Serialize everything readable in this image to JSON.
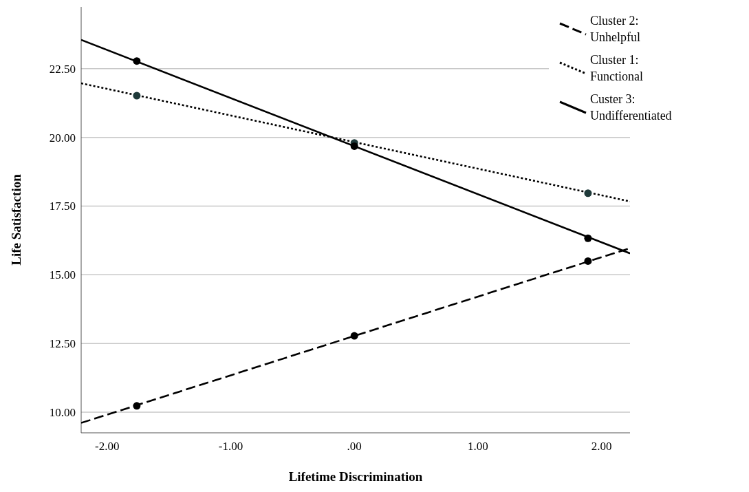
{
  "chart_data": {
    "type": "line",
    "xlabel": "Lifetime Discrimination",
    "ylabel": "Life Satisfaction",
    "xlim": [
      -2.21,
      2.23
    ],
    "ylim": [
      9.25,
      24.75
    ],
    "xticks": [
      {
        "value": -2,
        "label": "-2.00"
      },
      {
        "value": -1,
        "label": "-1.00"
      },
      {
        "value": 0,
        "label": ".00"
      },
      {
        "value": 1,
        "label": "1.00"
      },
      {
        "value": 2,
        "label": "2.00"
      }
    ],
    "yticks": [
      {
        "value": 10,
        "label": "10.00"
      },
      {
        "value": 12.5,
        "label": "12.50"
      },
      {
        "value": 15,
        "label": "15.00"
      },
      {
        "value": 17.5,
        "label": "17.50"
      },
      {
        "value": 20,
        "label": "20.00"
      },
      {
        "value": 22.5,
        "label": "22.50"
      }
    ],
    "grid": "y",
    "legend": "top right",
    "marker": "none",
    "series": [
      {
        "name": "Cluster 2: Unhelpful",
        "color": "#000000",
        "line_style": "dashed",
        "x": [
          -2.21,
          2.23
        ],
        "values": [
          9.61,
          15.97
        ]
      },
      {
        "name": "Cluster 1: Functional",
        "color": "#000000",
        "line_style": "dotted",
        "x": [
          -2.21,
          2.23
        ],
        "values": [
          21.97,
          17.67
        ]
      },
      {
        "name": "Custer 3: Undifferentiated",
        "color": "#000000",
        "line_style": "solid",
        "x": [
          -2.21,
          2.23
        ],
        "values": [
          23.55,
          15.78
        ]
      },
      {
        "type": "scatter",
        "marker": "circle",
        "color": "#000000",
        "x": [
          -1.76,
          0,
          1.89
        ],
        "values": [
          10.23,
          12.78,
          15.5
        ]
      },
      {
        "type": "scatter",
        "marker": "circle",
        "color": "#1f3a3a",
        "x": [
          -1.76,
          0,
          1.89
        ],
        "values": [
          21.52,
          19.8,
          17.97
        ]
      },
      {
        "type": "scatter",
        "marker": "circle",
        "color": "#000000",
        "x": [
          -1.76,
          0,
          1.89
        ],
        "values": [
          22.78,
          19.68,
          16.33
        ]
      }
    ]
  }
}
